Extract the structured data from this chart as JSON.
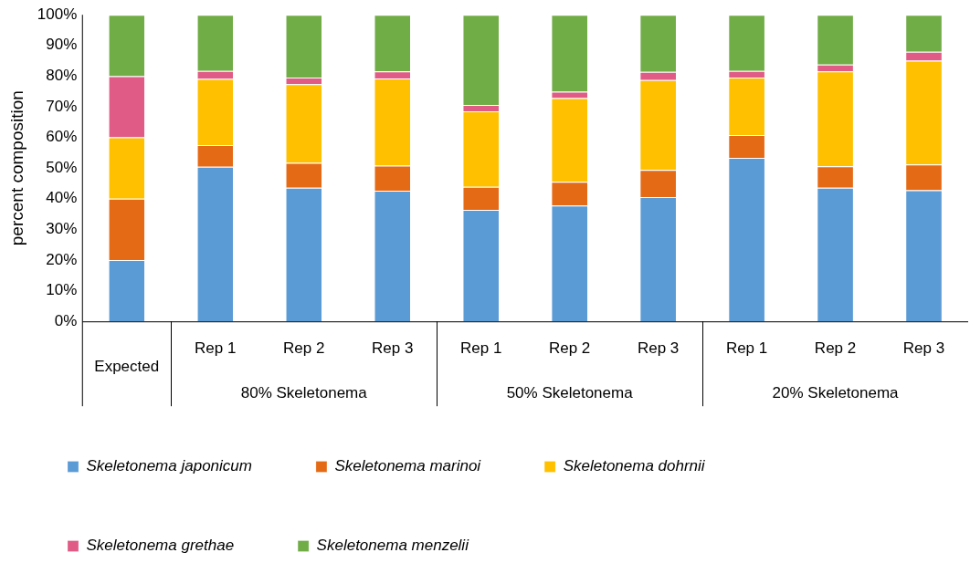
{
  "chart_data": {
    "type": "bar",
    "stacked": true,
    "ylabel": "percent composition",
    "categories": [
      "Expected",
      "Rep 1",
      "Rep 2",
      "Rep 3",
      "Rep 1",
      "Rep 2",
      "Rep 3",
      "Rep 1",
      "Rep 2",
      "Rep 3"
    ],
    "annotations": [
      "80% Skeletonema",
      "50% Skeletonema",
      "20% Skeletonema"
    ],
    "series": [
      {
        "name": "Skeletonema japonicum",
        "color": "#5b9bd5",
        "values": [
          20,
          50.4,
          43.6,
          42.6,
          36.4,
          37.8,
          40.5,
          53.3,
          43.6,
          42.8
        ]
      },
      {
        "name": "Skeletonema marinoi",
        "color": "#e56a16",
        "values": [
          20,
          7.1,
          8.1,
          8.2,
          7.5,
          7.7,
          8.9,
          7.5,
          7,
          8.4
        ]
      },
      {
        "name": "Skeletonema dohrnii",
        "color": "#ffc000",
        "values": [
          20,
          21.6,
          25.7,
          28.4,
          24.6,
          27.3,
          29.3,
          18.7,
          30.9,
          33.8
        ]
      },
      {
        "name": "Skeletonema grethae",
        "color": "#e05c87",
        "values": [
          20,
          2.6,
          2.1,
          2.3,
          2.1,
          2.1,
          2.7,
          2.2,
          2.3,
          2.9
        ]
      },
      {
        "name": "Skeletonema menzelii",
        "color": "#71ad47",
        "values": [
          20,
          18.3,
          20.5,
          18.5,
          29.4,
          25.1,
          18.6,
          18.3,
          16.2,
          12.1
        ]
      }
    ],
    "ylim": [
      0,
      100
    ],
    "yticks": [
      {
        "value": 0,
        "label": "0%"
      },
      {
        "value": 10,
        "label": "10%"
      },
      {
        "value": 20,
        "label": "20%"
      },
      {
        "value": 30,
        "label": "30%"
      },
      {
        "value": 40,
        "label": "40%"
      },
      {
        "value": 50,
        "label": "50%"
      },
      {
        "value": 60,
        "label": "60%"
      },
      {
        "value": 70,
        "label": "70%"
      },
      {
        "value": 80,
        "label": "80%"
      },
      {
        "value": 90,
        "label": "90%"
      },
      {
        "value": 100,
        "label": "100%"
      }
    ],
    "grid": false,
    "legend": "bottom"
  }
}
